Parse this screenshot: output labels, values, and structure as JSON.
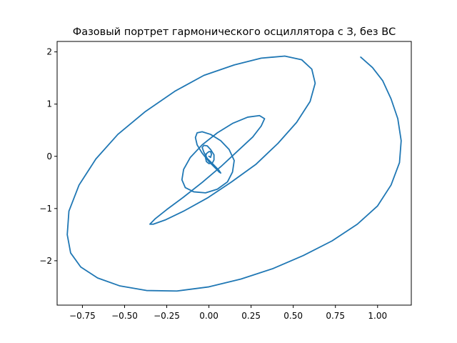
{
  "chart_data": {
    "type": "line",
    "title": "Фазовый портрет гармонического осциллятора с З, без ВС",
    "xlabel": "",
    "ylabel": "",
    "xlim": [
      -0.9,
      1.2
    ],
    "ylim": [
      -2.85,
      2.2
    ],
    "grid": false,
    "x_ticks": [
      {
        "value": -0.75,
        "label": "−0.75"
      },
      {
        "value": -0.5,
        "label": "−0.50"
      },
      {
        "value": -0.25,
        "label": "−0.25"
      },
      {
        "value": 0.0,
        "label": "0.00"
      },
      {
        "value": 0.25,
        "label": "0.25"
      },
      {
        "value": 0.5,
        "label": "0.50"
      },
      {
        "value": 0.75,
        "label": "0.75"
      },
      {
        "value": 1.0,
        "label": "1.00"
      }
    ],
    "y_ticks": [
      {
        "value": 2,
        "label": "2"
      },
      {
        "value": 1,
        "label": "1"
      },
      {
        "value": 0,
        "label": "0"
      },
      {
        "value": -1,
        "label": "−1"
      },
      {
        "value": -2,
        "label": "−2"
      }
    ],
    "series": [
      {
        "color": "#1f77b4",
        "x": [
          0.9,
          0.97,
          1.03,
          1.08,
          1.12,
          1.14,
          1.13,
          1.08,
          1.0,
          0.88,
          0.73,
          0.56,
          0.38,
          0.19,
          0.0,
          -0.19,
          -0.37,
          -0.53,
          -0.66,
          -0.76,
          -0.82,
          -0.84,
          -0.83,
          -0.77,
          -0.67,
          -0.54,
          -0.38,
          -0.2,
          -0.03,
          0.15,
          0.31,
          0.45,
          0.55,
          0.61,
          0.63,
          0.6,
          0.52,
          0.41,
          0.28,
          0.13,
          -0.01,
          -0.15,
          -0.26,
          -0.33,
          -0.35,
          -0.32,
          -0.25,
          -0.15,
          -0.04,
          0.07,
          0.17,
          0.26,
          0.31,
          0.33,
          0.3,
          0.23,
          0.14,
          0.05,
          -0.04,
          -0.11,
          -0.15,
          -0.16,
          -0.14,
          -0.09,
          -0.02,
          0.05,
          0.11,
          0.14,
          0.15,
          0.12,
          0.07,
          0.01,
          -0.04,
          -0.07,
          -0.08,
          -0.07,
          -0.04,
          0.0,
          0.04,
          0.06,
          0.07,
          0.06,
          0.03,
          -0.01,
          -0.03,
          -0.04,
          -0.03,
          -0.01,
          0.01,
          0.03,
          0.03,
          0.02,
          0.0,
          -0.015,
          -0.02,
          -0.015,
          0.0,
          0.01,
          0.015,
          0.01,
          0.0
        ],
        "y": [
          1.9,
          1.7,
          1.45,
          1.1,
          0.72,
          0.3,
          -0.12,
          -0.55,
          -0.95,
          -1.3,
          -1.62,
          -1.9,
          -2.15,
          -2.35,
          -2.5,
          -2.58,
          -2.57,
          -2.48,
          -2.33,
          -2.12,
          -1.85,
          -1.5,
          -1.05,
          -0.55,
          -0.05,
          0.42,
          0.85,
          1.25,
          1.55,
          1.75,
          1.88,
          1.92,
          1.85,
          1.67,
          1.4,
          1.05,
          0.65,
          0.25,
          -0.15,
          -0.5,
          -0.8,
          -1.05,
          -1.22,
          -1.3,
          -1.3,
          -1.2,
          -1.02,
          -0.78,
          -0.5,
          -0.2,
          0.1,
          0.37,
          0.58,
          0.72,
          0.78,
          0.75,
          0.63,
          0.45,
          0.22,
          -0.02,
          -0.25,
          -0.45,
          -0.6,
          -0.68,
          -0.7,
          -0.63,
          -0.49,
          -0.3,
          -0.08,
          0.13,
          0.3,
          0.42,
          0.47,
          0.45,
          0.36,
          0.22,
          0.06,
          -0.1,
          -0.23,
          -0.3,
          -0.32,
          -0.27,
          -0.17,
          -0.04,
          0.08,
          0.17,
          0.21,
          0.2,
          0.13,
          0.03,
          -0.07,
          -0.13,
          -0.14,
          -0.1,
          -0.03,
          0.05,
          0.09,
          0.09,
          0.04,
          -0.02,
          0.0
        ]
      }
    ]
  }
}
